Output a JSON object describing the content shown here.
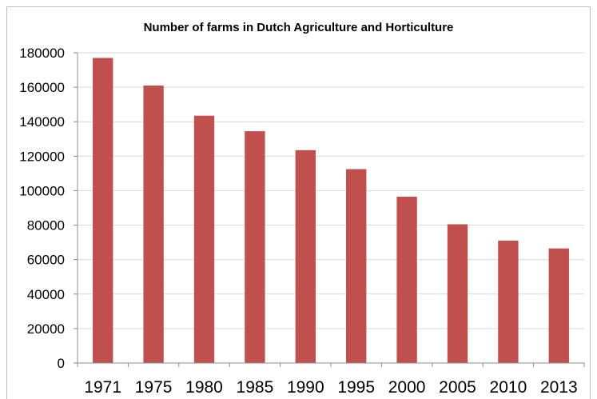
{
  "chart_data": {
    "type": "bar",
    "title": "Number of farms in Dutch Agriculture and Horticulture",
    "xlabel": "",
    "ylabel": "",
    "categories": [
      "1971",
      "1975",
      "1980",
      "1985",
      "1990",
      "1995",
      "2000",
      "2005",
      "2010",
      "2013"
    ],
    "series": [
      {
        "values": [
          177000,
          161000,
          143500,
          134500,
          123500,
          112500,
          96500,
          80500,
          71000,
          66500
        ]
      }
    ],
    "ylim": [
      0,
      180000
    ],
    "yticks": [
      "0",
      "20000",
      "40000",
      "60000",
      "80000",
      "100000",
      "120000",
      "140000",
      "160000",
      "180000"
    ],
    "grid": true,
    "legend": "none",
    "bar_color": "#c0504d",
    "gridline_color": "#d9d9d9"
  }
}
